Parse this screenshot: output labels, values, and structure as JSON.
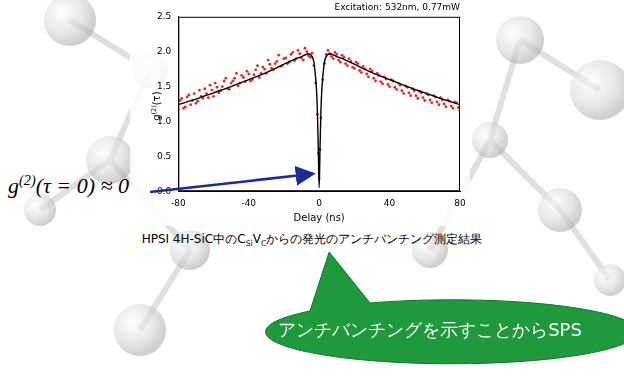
{
  "chart_data": {
    "type": "scatter",
    "title": "Excitation: 532nm, 0.77mW",
    "x_label": "Delay (ns)",
    "y_label": [
      {
        "text": "g"
      },
      {
        "text": "(2)",
        "sup": true
      },
      {
        "text": "(τ)"
      }
    ],
    "xlim": [
      -80,
      80
    ],
    "xticks": [
      -80,
      -40,
      0,
      40,
      80
    ],
    "ylim": [
      0,
      2.5
    ],
    "yticks": [
      {
        "value": 0,
        "label": "0.0"
      },
      0.5,
      {
        "value": 1,
        "label": "1.0"
      },
      1.5,
      {
        "value": 2,
        "label": "2.0"
      },
      2.5
    ],
    "grid": false,
    "series": [
      {
        "type": "scatter",
        "color": "#e8251f",
        "marker": "dot",
        "x": [
          -80,
          -79,
          -78,
          -77,
          -76,
          -75,
          -74,
          -73,
          -72,
          -71,
          -70,
          -69,
          -68,
          -67,
          -66,
          -65,
          -64,
          -63,
          -62,
          -61,
          -60,
          -59,
          -58,
          -57,
          -56,
          -55,
          -54,
          -53,
          -52,
          -51,
          -50,
          -49,
          -48,
          -47,
          -46,
          -45,
          -44,
          -43,
          -42,
          -41,
          -40,
          -39,
          -38,
          -37,
          -36,
          -35,
          -34,
          -33,
          -32,
          -31,
          -30,
          -29,
          -28,
          -27,
          -26,
          -25,
          -24,
          -23,
          -22,
          -21,
          -20,
          -19,
          -18,
          -17,
          -16,
          -15,
          -14,
          -13,
          -12,
          -11,
          -10,
          -9,
          -8,
          -7,
          -6,
          -5,
          -4,
          -3,
          -2,
          -1,
          -0.5,
          0,
          0.5,
          1,
          2,
          3,
          4,
          5,
          6,
          7,
          8,
          9,
          10,
          11,
          12,
          13,
          14,
          15,
          16,
          17,
          18,
          19,
          20,
          21,
          22,
          23,
          24,
          25,
          26,
          27,
          28,
          29,
          30,
          31,
          32,
          33,
          34,
          35,
          36,
          37,
          38,
          39,
          40,
          41,
          42,
          43,
          44,
          45,
          46,
          47,
          48,
          49,
          50,
          51,
          52,
          53,
          54,
          55,
          56,
          57,
          58,
          59,
          60,
          61,
          62,
          63,
          64,
          65,
          66,
          67,
          68,
          69,
          70,
          71,
          72,
          73,
          74,
          75,
          76,
          77,
          78,
          79,
          80
        ],
        "values": [
          1.18,
          1.3,
          1.33,
          1.19,
          1.21,
          1.35,
          1.38,
          1.24,
          1.3,
          1.4,
          1.26,
          1.29,
          1.45,
          1.36,
          1.33,
          1.47,
          1.4,
          1.34,
          1.52,
          1.45,
          1.36,
          1.55,
          1.49,
          1.41,
          1.44,
          1.5,
          1.58,
          1.62,
          1.47,
          1.46,
          1.55,
          1.58,
          1.62,
          1.69,
          1.51,
          1.55,
          1.66,
          1.63,
          1.57,
          1.72,
          1.68,
          1.58,
          1.6,
          1.67,
          1.74,
          1.8,
          1.63,
          1.69,
          1.78,
          1.75,
          1.69,
          1.88,
          1.82,
          1.76,
          1.74,
          1.83,
          1.86,
          1.95,
          1.79,
          1.8,
          1.9,
          1.91,
          1.83,
          1.85,
          1.96,
          1.99,
          1.87,
          1.9,
          2.02,
          1.97,
          1.91,
          1.88,
          2.05,
          2.0,
          1.94,
          1.92,
          1.98,
          1.8,
          1.55,
          1.1,
          0.55,
          0.18,
          0.6,
          1.05,
          1.6,
          1.83,
          1.96,
          2.02,
          1.97,
          1.93,
          1.9,
          1.99,
          1.96,
          1.88,
          1.85,
          1.95,
          1.92,
          1.83,
          1.8,
          1.9,
          1.86,
          1.78,
          1.76,
          1.85,
          1.83,
          1.73,
          1.7,
          1.79,
          1.75,
          1.68,
          1.64,
          1.75,
          1.72,
          1.62,
          1.58,
          1.69,
          1.66,
          1.57,
          1.54,
          1.64,
          1.61,
          1.53,
          1.5,
          1.6,
          1.58,
          1.49,
          1.46,
          1.55,
          1.52,
          1.44,
          1.4,
          1.51,
          1.49,
          1.41,
          1.37,
          1.47,
          1.44,
          1.37,
          1.33,
          1.43,
          1.41,
          1.34,
          1.3,
          1.4,
          1.38,
          1.31,
          1.27,
          1.37,
          1.35,
          1.28,
          1.24,
          1.34,
          1.31,
          1.25,
          1.21,
          1.31,
          1.29,
          1.22,
          1.19,
          1.28,
          1.27,
          1.2,
          1.16
        ]
      },
      {
        "type": "line",
        "color": "#000000",
        "line_style": "solid",
        "x": [
          -80,
          -70,
          -60,
          -50,
          -40,
          -30,
          -20,
          -15,
          -10,
          -6,
          -4,
          -3,
          -2,
          -1.5,
          -1,
          -0.5,
          0,
          0.5,
          1,
          1.5,
          2,
          3,
          4,
          6,
          10,
          15,
          20,
          30,
          40,
          50,
          60,
          70,
          80
        ],
        "values": [
          1.24,
          1.32,
          1.41,
          1.5,
          1.6,
          1.7,
          1.82,
          1.88,
          1.93,
          1.97,
          1.93,
          1.85,
          1.62,
          1.45,
          1.15,
          0.62,
          0.05,
          0.62,
          1.15,
          1.45,
          1.62,
          1.85,
          1.93,
          1.97,
          1.93,
          1.88,
          1.82,
          1.7,
          1.6,
          1.5,
          1.41,
          1.32,
          1.24
        ]
      }
    ]
  },
  "annotation": [
    {
      "text": "g"
    },
    {
      "text": "(2)",
      "sup": true
    },
    {
      "text": "(τ = 0) ≈ 0"
    }
  ],
  "caption": [
    {
      "text": "HPSI 4H-SiC中のC"
    },
    {
      "text": "Si",
      "sub": true
    },
    {
      "text": "V"
    },
    {
      "text": "C",
      "sub": true
    },
    {
      "text": "からの発光のアンチバンチング測定結果"
    }
  ],
  "callout": "アンチバンチングを示すことからSPS"
}
